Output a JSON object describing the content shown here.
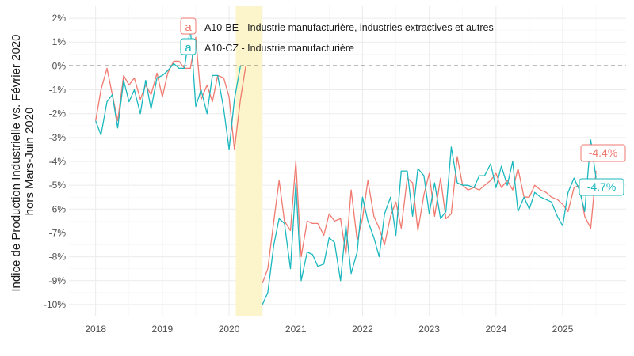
{
  "chart_data": {
    "type": "line",
    "title": "",
    "xlabel": "",
    "ylabel": "Indice de Production Industrielle vs. Février 2020\nhors Mars-Juin 2020",
    "ylabel_lines": [
      "Indice de Production Industrielle vs. Février 2020",
      "hors Mars-Juin 2020"
    ],
    "xlim": [
      2017.6,
      2025.95
    ],
    "ylim": [
      -10.5,
      2.5
    ],
    "x_ticks": [
      2018,
      2019,
      2020,
      2021,
      2022,
      2023,
      2024,
      2025
    ],
    "x_tick_labels": [
      "2018",
      "2019",
      "2020",
      "2021",
      "2022",
      "2023",
      "2024",
      "2025"
    ],
    "y_ticks": [
      2,
      1,
      0,
      -1,
      -2,
      -3,
      -4,
      -5,
      -6,
      -7,
      -8,
      -9,
      -10
    ],
    "y_tick_labels": [
      "2%",
      "1%",
      "0%",
      "-1%",
      "-2%",
      "-3%",
      "-4%",
      "-5%",
      "-6%",
      "-7%",
      "-8%",
      "-9%",
      "-10%"
    ],
    "reference_line": {
      "y": 0,
      "style": "dashed"
    },
    "shaded_period": {
      "x_start": 2020.1,
      "x_end": 2020.5,
      "color": "#fcf5cc"
    },
    "legend": {
      "position": "top-left"
    },
    "series": [
      {
        "name": "A10-BE - Industrie manufacturière, industries extractives et autres",
        "key": "a",
        "color": "#f07a70",
        "end_label": "-4.4%",
        "segments": [
          [
            [
              2018.0,
              -2.3
            ],
            [
              2018.08,
              -1.0
            ],
            [
              2018.17,
              -0.1
            ],
            [
              2018.25,
              -1.2
            ],
            [
              2018.33,
              -2.3
            ],
            [
              2018.42,
              -0.4
            ],
            [
              2018.5,
              -0.8
            ],
            [
              2018.58,
              -0.5
            ],
            [
              2018.67,
              -1.4
            ],
            [
              2018.75,
              -0.8
            ],
            [
              2018.83,
              -1.2
            ],
            [
              2018.92,
              -0.3
            ],
            [
              2019.0,
              -1.3
            ],
            [
              2019.08,
              -0.3
            ],
            [
              2019.17,
              0.2
            ],
            [
              2019.25,
              0.2
            ],
            [
              2019.33,
              -0.1
            ],
            [
              2019.42,
              -0.1
            ],
            [
              2019.5,
              1.2
            ],
            [
              2019.58,
              -1.4
            ],
            [
              2019.67,
              -0.8
            ],
            [
              2019.75,
              -1.5
            ],
            [
              2019.83,
              -0.4
            ],
            [
              2019.92,
              -0.5
            ],
            [
              2020.0,
              -1.3
            ],
            [
              2020.08,
              -3.5
            ],
            [
              2020.17,
              -1.4
            ],
            [
              2020.25,
              0.0
            ]
          ],
          [
            [
              2020.5,
              -9.1
            ],
            [
              2020.58,
              -8.5
            ],
            [
              2020.67,
              -6.5
            ],
            [
              2020.75,
              -4.8
            ],
            [
              2020.83,
              -6.5
            ],
            [
              2020.92,
              -6.9
            ],
            [
              2021.0,
              -4.0
            ],
            [
              2021.08,
              -8.0
            ],
            [
              2021.17,
              -6.5
            ],
            [
              2021.25,
              -6.6
            ],
            [
              2021.33,
              -6.6
            ],
            [
              2021.42,
              -7.1
            ],
            [
              2021.5,
              -6.2
            ],
            [
              2021.58,
              -6.5
            ],
            [
              2021.67,
              -6.4
            ],
            [
              2021.75,
              -7.9
            ],
            [
              2021.83,
              -5.2
            ],
            [
              2021.92,
              -7.3
            ],
            [
              2022.0,
              -6.4
            ],
            [
              2022.08,
              -4.8
            ],
            [
              2022.17,
              -6.3
            ],
            [
              2022.25,
              -6.8
            ],
            [
              2022.33,
              -7.5
            ],
            [
              2022.42,
              -6.3
            ],
            [
              2022.5,
              -5.7
            ],
            [
              2022.58,
              -6.8
            ],
            [
              2022.67,
              -4.7
            ],
            [
              2022.75,
              -4.9
            ],
            [
              2022.83,
              -6.9
            ],
            [
              2022.92,
              -5.4
            ],
            [
              2023.0,
              -4.5
            ],
            [
              2023.08,
              -6.3
            ],
            [
              2023.17,
              -4.7
            ],
            [
              2023.25,
              -6.4
            ],
            [
              2023.33,
              -6.2
            ],
            [
              2023.42,
              -3.8
            ],
            [
              2023.5,
              -5.0
            ],
            [
              2023.58,
              -5.2
            ],
            [
              2023.67,
              -5.1
            ],
            [
              2023.75,
              -5.2
            ],
            [
              2023.83,
              -5.0
            ],
            [
              2023.92,
              -4.8
            ],
            [
              2024.0,
              -4.5
            ],
            [
              2024.08,
              -5.1
            ],
            [
              2024.17,
              -4.8
            ],
            [
              2024.25,
              -5.2
            ],
            [
              2024.33,
              -4.3
            ],
            [
              2024.42,
              -5.5
            ],
            [
              2024.5,
              -5.5
            ],
            [
              2024.58,
              -5.0
            ],
            [
              2024.67,
              -5.2
            ],
            [
              2024.75,
              -5.3
            ],
            [
              2024.83,
              -5.5
            ],
            [
              2024.92,
              -5.6
            ],
            [
              2025.0,
              -5.8
            ],
            [
              2025.08,
              -6.1
            ],
            [
              2025.17,
              -5.1
            ],
            [
              2025.25,
              -5.0
            ],
            [
              2025.33,
              -6.3
            ],
            [
              2025.42,
              -6.8
            ],
            [
              2025.5,
              -4.4
            ]
          ]
        ]
      },
      {
        "name": "A10-CZ - Industrie manufacturière",
        "key": "a",
        "color": "#1ab8be",
        "end_label": "-4.7%",
        "segments": [
          [
            [
              2018.0,
              -2.3
            ],
            [
              2018.08,
              -2.9
            ],
            [
              2018.17,
              -1.5
            ],
            [
              2018.25,
              -1.2
            ],
            [
              2018.33,
              -2.6
            ],
            [
              2018.42,
              -0.6
            ],
            [
              2018.5,
              -1.5
            ],
            [
              2018.58,
              -1.0
            ],
            [
              2018.67,
              -2.0
            ],
            [
              2018.75,
              -0.6
            ],
            [
              2018.83,
              -1.8
            ],
            [
              2018.92,
              -0.5
            ],
            [
              2019.0,
              -0.4
            ],
            [
              2019.08,
              -0.2
            ],
            [
              2019.17,
              0.1
            ],
            [
              2019.25,
              -0.1
            ],
            [
              2019.33,
              -0.1
            ],
            [
              2019.42,
              1.6
            ],
            [
              2019.5,
              -1.7
            ],
            [
              2019.58,
              -1.0
            ],
            [
              2019.67,
              -2.0
            ],
            [
              2019.75,
              -0.4
            ],
            [
              2019.83,
              -0.4
            ],
            [
              2019.92,
              -1.8
            ],
            [
              2020.0,
              -3.5
            ],
            [
              2020.08,
              -1.4
            ],
            [
              2020.17,
              0.0
            ]
          ],
          [
            [
              2020.5,
              -10.0
            ],
            [
              2020.58,
              -9.5
            ],
            [
              2020.67,
              -7.5
            ],
            [
              2020.75,
              -6.4
            ],
            [
              2020.83,
              -6.6
            ],
            [
              2020.92,
              -8.5
            ],
            [
              2021.0,
              -4.9
            ],
            [
              2021.08,
              -9.0
            ],
            [
              2021.17,
              -7.8
            ],
            [
              2021.25,
              -7.9
            ],
            [
              2021.33,
              -8.4
            ],
            [
              2021.42,
              -8.3
            ],
            [
              2021.5,
              -7.2
            ],
            [
              2021.58,
              -7.4
            ],
            [
              2021.67,
              -9.0
            ],
            [
              2021.75,
              -6.7
            ],
            [
              2021.83,
              -8.7
            ],
            [
              2021.92,
              -7.8
            ],
            [
              2022.0,
              -5.5
            ],
            [
              2022.08,
              -6.5
            ],
            [
              2022.17,
              -7.2
            ],
            [
              2022.25,
              -8.0
            ],
            [
              2022.33,
              -6.2
            ],
            [
              2022.42,
              -5.5
            ],
            [
              2022.5,
              -7.1
            ],
            [
              2022.58,
              -4.4
            ],
            [
              2022.67,
              -4.4
            ],
            [
              2022.75,
              -6.3
            ],
            [
              2022.83,
              -4.3
            ],
            [
              2022.92,
              -4.6
            ],
            [
              2023.0,
              -6.2
            ],
            [
              2023.08,
              -4.9
            ],
            [
              2023.17,
              -6.4
            ],
            [
              2023.25,
              -6.1
            ],
            [
              2023.33,
              -3.4
            ],
            [
              2023.42,
              -4.9
            ],
            [
              2023.5,
              -5.0
            ],
            [
              2023.58,
              -5.0
            ],
            [
              2023.67,
              -5.1
            ],
            [
              2023.75,
              -4.6
            ],
            [
              2023.83,
              -4.6
            ],
            [
              2023.92,
              -4.1
            ],
            [
              2024.0,
              -5.1
            ],
            [
              2024.08,
              -4.2
            ],
            [
              2024.17,
              -5.0
            ],
            [
              2024.25,
              -4.0
            ],
            [
              2024.33,
              -6.1
            ],
            [
              2024.42,
              -5.5
            ],
            [
              2024.5,
              -6.0
            ],
            [
              2024.58,
              -5.3
            ],
            [
              2024.67,
              -5.5
            ],
            [
              2024.75,
              -5.6
            ],
            [
              2024.83,
              -5.7
            ],
            [
              2024.92,
              -6.3
            ],
            [
              2025.0,
              -6.7
            ],
            [
              2025.08,
              -5.3
            ],
            [
              2025.17,
              -4.7
            ],
            [
              2025.25,
              -5.2
            ],
            [
              2025.33,
              -6.1
            ],
            [
              2025.42,
              -3.1
            ],
            [
              2025.5,
              -4.7
            ]
          ]
        ]
      }
    ]
  }
}
